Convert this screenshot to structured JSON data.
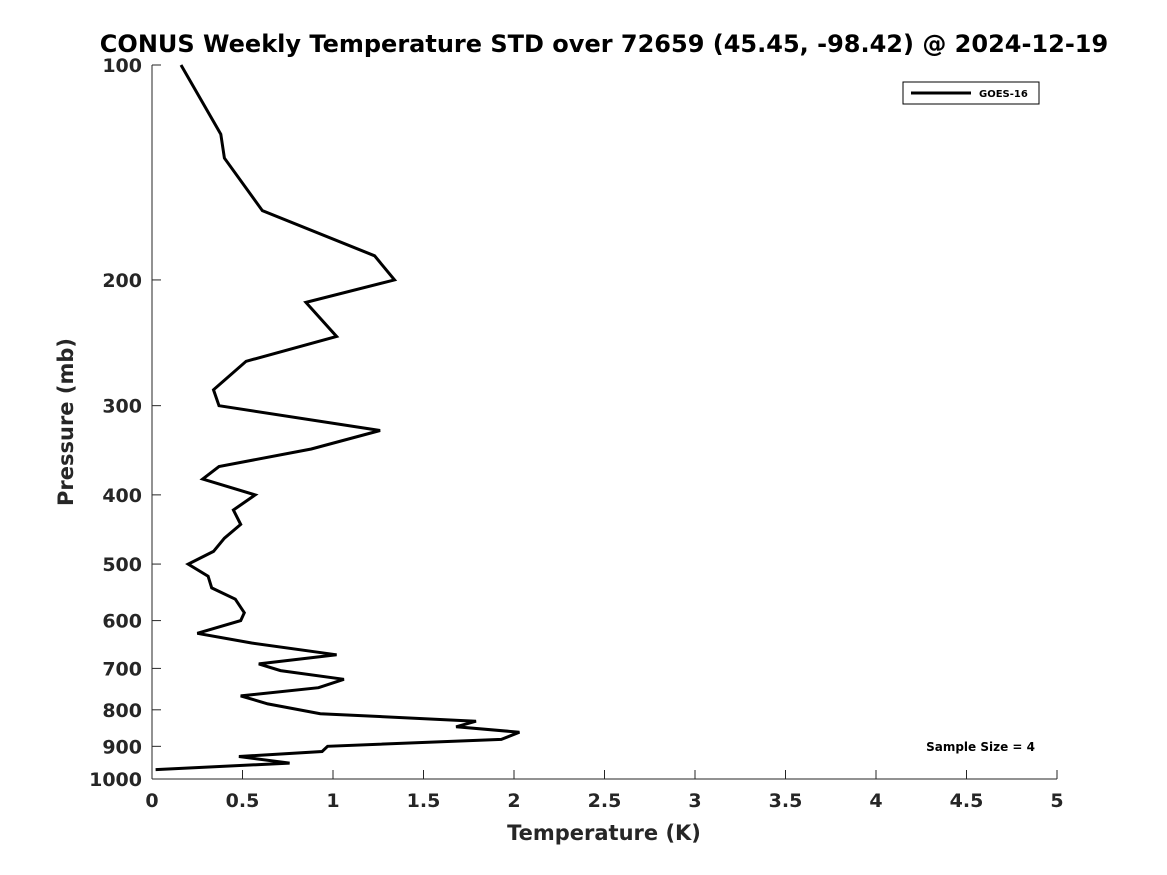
{
  "chart_data": {
    "type": "line",
    "title": "CONUS Weekly Temperature STD over 72659 (45.45, -98.42) @ 2024-12-19",
    "xlabel": "Temperature (K)",
    "ylabel": "Pressure (mb)",
    "xlim": [
      0,
      5
    ],
    "ylim": [
      100,
      1000
    ],
    "y_scale": "log",
    "y_reversed": true,
    "xticks": [
      "0",
      "0.5",
      "1",
      "1.5",
      "2",
      "2.5",
      "3",
      "3.5",
      "4",
      "4.5",
      "5"
    ],
    "yticks": [
      "100",
      "200",
      "300",
      "400",
      "500",
      "600",
      "700",
      "800",
      "900",
      "1000"
    ],
    "grid": false,
    "legend_position": "top-right",
    "series": [
      {
        "name": "GOES-16",
        "color": "#000000",
        "points": [
          [
            0.16,
            100
          ],
          [
            0.38,
            125
          ],
          [
            0.4,
            135
          ],
          [
            0.61,
            160
          ],
          [
            1.23,
            185
          ],
          [
            1.34,
            200
          ],
          [
            0.85,
            215
          ],
          [
            1.02,
            240
          ],
          [
            0.52,
            260
          ],
          [
            0.34,
            285
          ],
          [
            0.37,
            300
          ],
          [
            1.26,
            325
          ],
          [
            0.88,
            345
          ],
          [
            0.37,
            365
          ],
          [
            0.28,
            380
          ],
          [
            0.57,
            400
          ],
          [
            0.45,
            420
          ],
          [
            0.49,
            440
          ],
          [
            0.4,
            460
          ],
          [
            0.34,
            480
          ],
          [
            0.2,
            500
          ],
          [
            0.31,
            520
          ],
          [
            0.33,
            540
          ],
          [
            0.46,
            560
          ],
          [
            0.51,
            585
          ],
          [
            0.49,
            600
          ],
          [
            0.25,
            625
          ],
          [
            0.55,
            645
          ],
          [
            1.02,
            670
          ],
          [
            0.59,
            690
          ],
          [
            0.71,
            705
          ],
          [
            1.06,
            725
          ],
          [
            0.92,
            745
          ],
          [
            0.49,
            765
          ],
          [
            0.64,
            785
          ],
          [
            0.93,
            810
          ],
          [
            1.79,
            830
          ],
          [
            1.68,
            845
          ],
          [
            2.03,
            860
          ],
          [
            1.93,
            880
          ],
          [
            0.97,
            900
          ],
          [
            0.94,
            915
          ],
          [
            0.48,
            930
          ],
          [
            0.76,
            950
          ],
          [
            0.02,
            970
          ]
        ]
      }
    ],
    "annotation": "Sample Size = 4"
  }
}
